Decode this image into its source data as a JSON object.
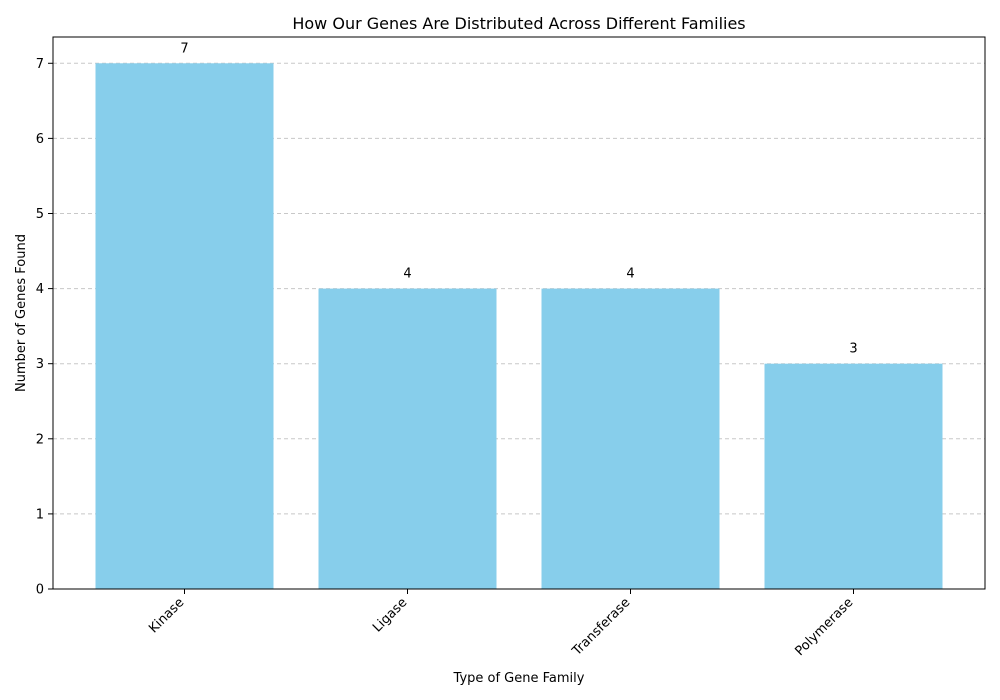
{
  "chart_data": {
    "type": "bar",
    "title": "How Our Genes Are Distributed Across Different Families",
    "xlabel": "Type of Gene Family",
    "ylabel": "Number of Genes Found",
    "categories": [
      "Kinase",
      "Ligase",
      "Transferase",
      "Polymerase"
    ],
    "values": [
      7,
      4,
      4,
      3
    ],
    "ylim": [
      0,
      7.35
    ],
    "yticks": [
      0,
      1,
      2,
      3,
      4,
      5,
      6,
      7
    ],
    "grid": "y-dashed",
    "bar_color": "#87CEEB",
    "grid_color": "#c8c8c8",
    "x_tick_rotation": -45
  }
}
